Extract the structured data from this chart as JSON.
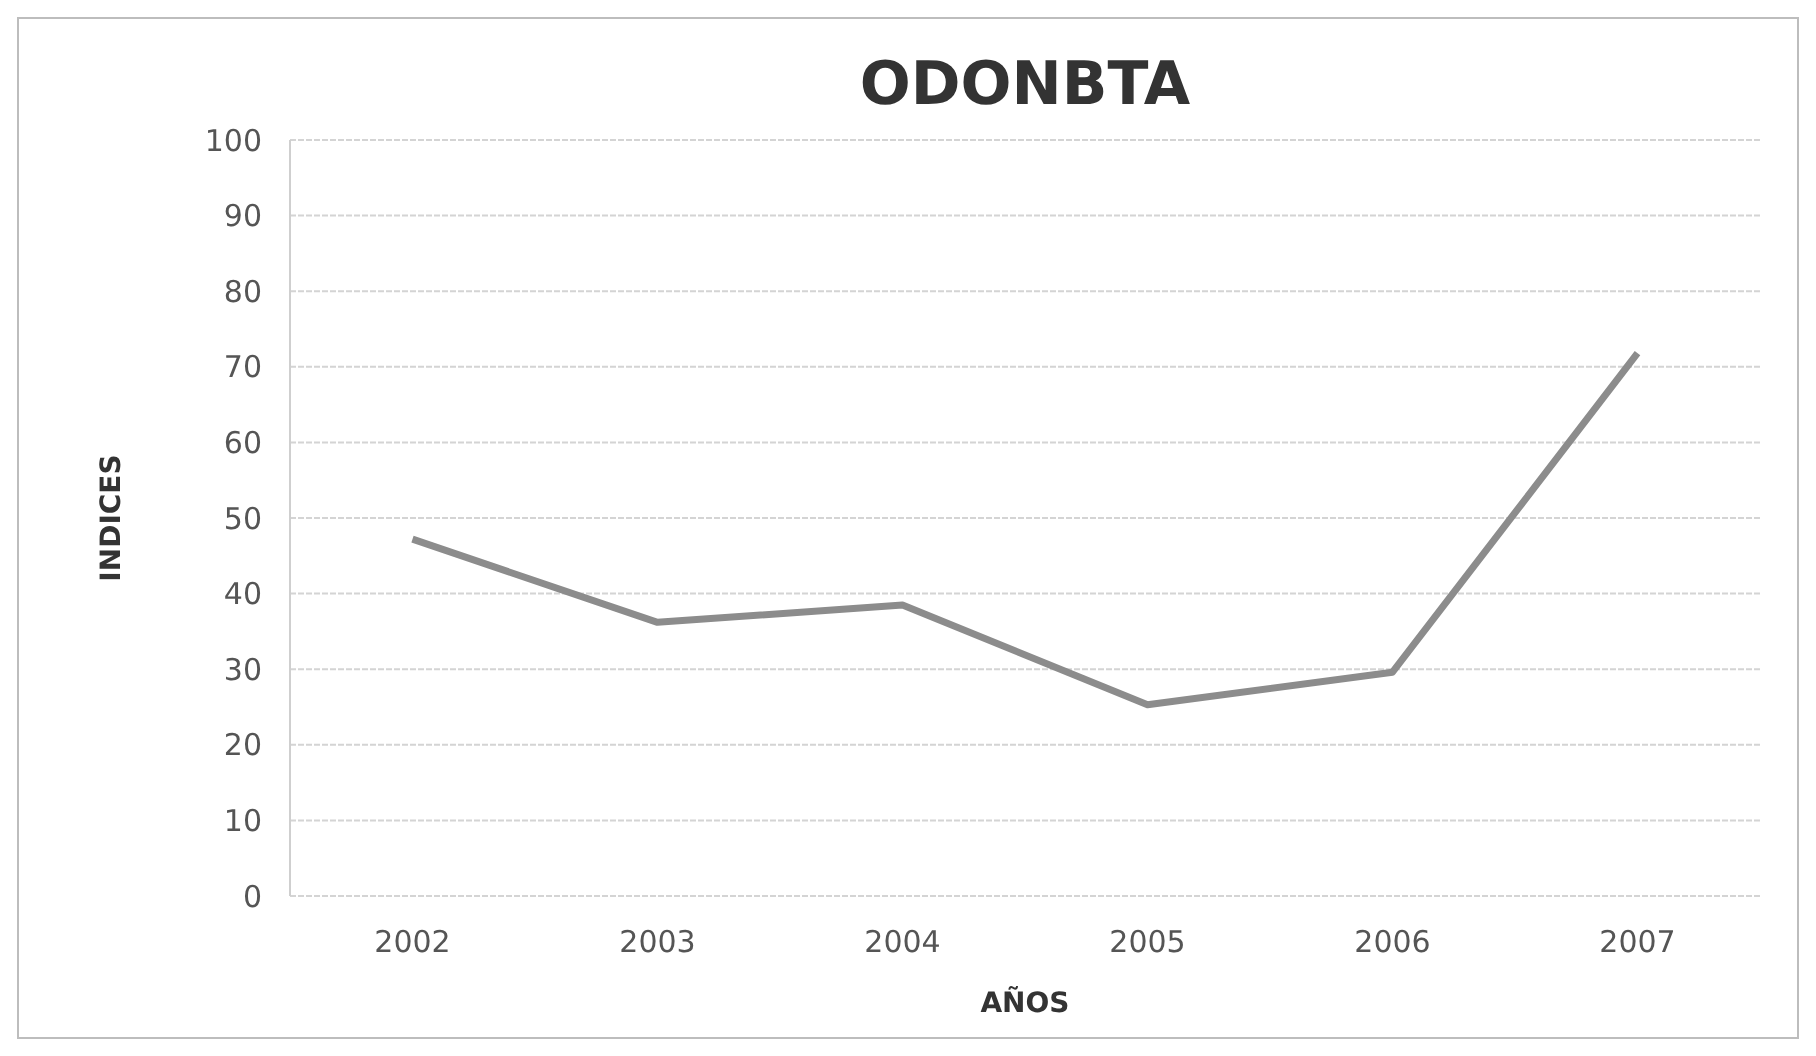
{
  "chart_data": {
    "type": "line",
    "title": "ODONBTA",
    "xlabel": "AÑOS",
    "ylabel": "INDICES",
    "categories": [
      "2002",
      "2003",
      "2004",
      "2005",
      "2006",
      "2007"
    ],
    "series": [
      {
        "color": "#8c8c8c",
        "values": [
          47.2,
          36.2,
          38.5,
          25.3,
          29.6,
          71.8
        ]
      }
    ],
    "ylim": [
      0,
      100
    ],
    "yticks": [
      0,
      10,
      20,
      30,
      40,
      50,
      60,
      70,
      80,
      90,
      100
    ],
    "grid": "y",
    "marker": "none",
    "line_style": "solid"
  }
}
